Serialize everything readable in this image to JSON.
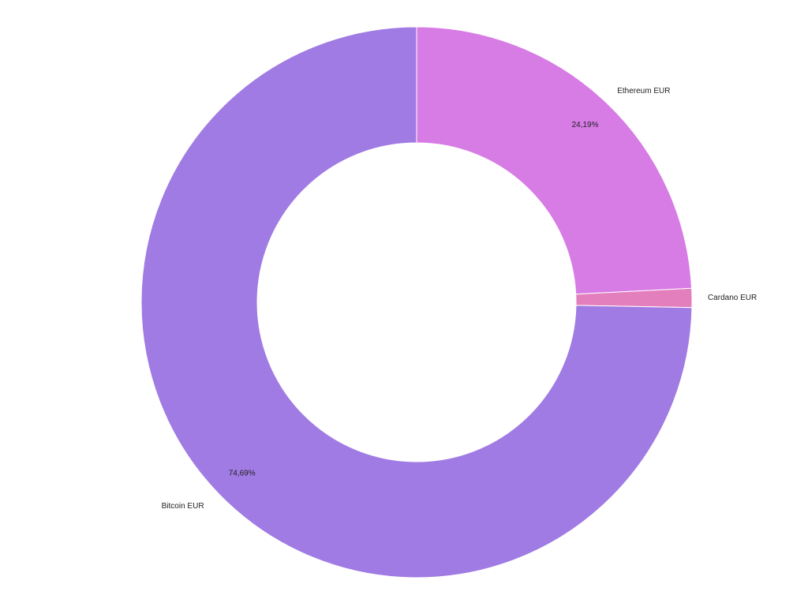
{
  "chart_data": {
    "type": "pie",
    "variant": "donut",
    "series": [
      {
        "name": "Ethereum EUR",
        "value": 24.19,
        "value_label": "24,19%",
        "color": "#d77be5",
        "show_value_label": true
      },
      {
        "name": "Cardano EUR",
        "value": 1.12,
        "value_label": "",
        "color": "#e47fbd",
        "show_value_label": false
      },
      {
        "name": "Bitcoin EUR",
        "value": 74.69,
        "value_label": "74,69%",
        "color": "#a07be3",
        "show_value_label": true
      }
    ],
    "start": "top",
    "direction": "clockwise",
    "slice_border_color": "#ffffff",
    "legend": "none"
  }
}
